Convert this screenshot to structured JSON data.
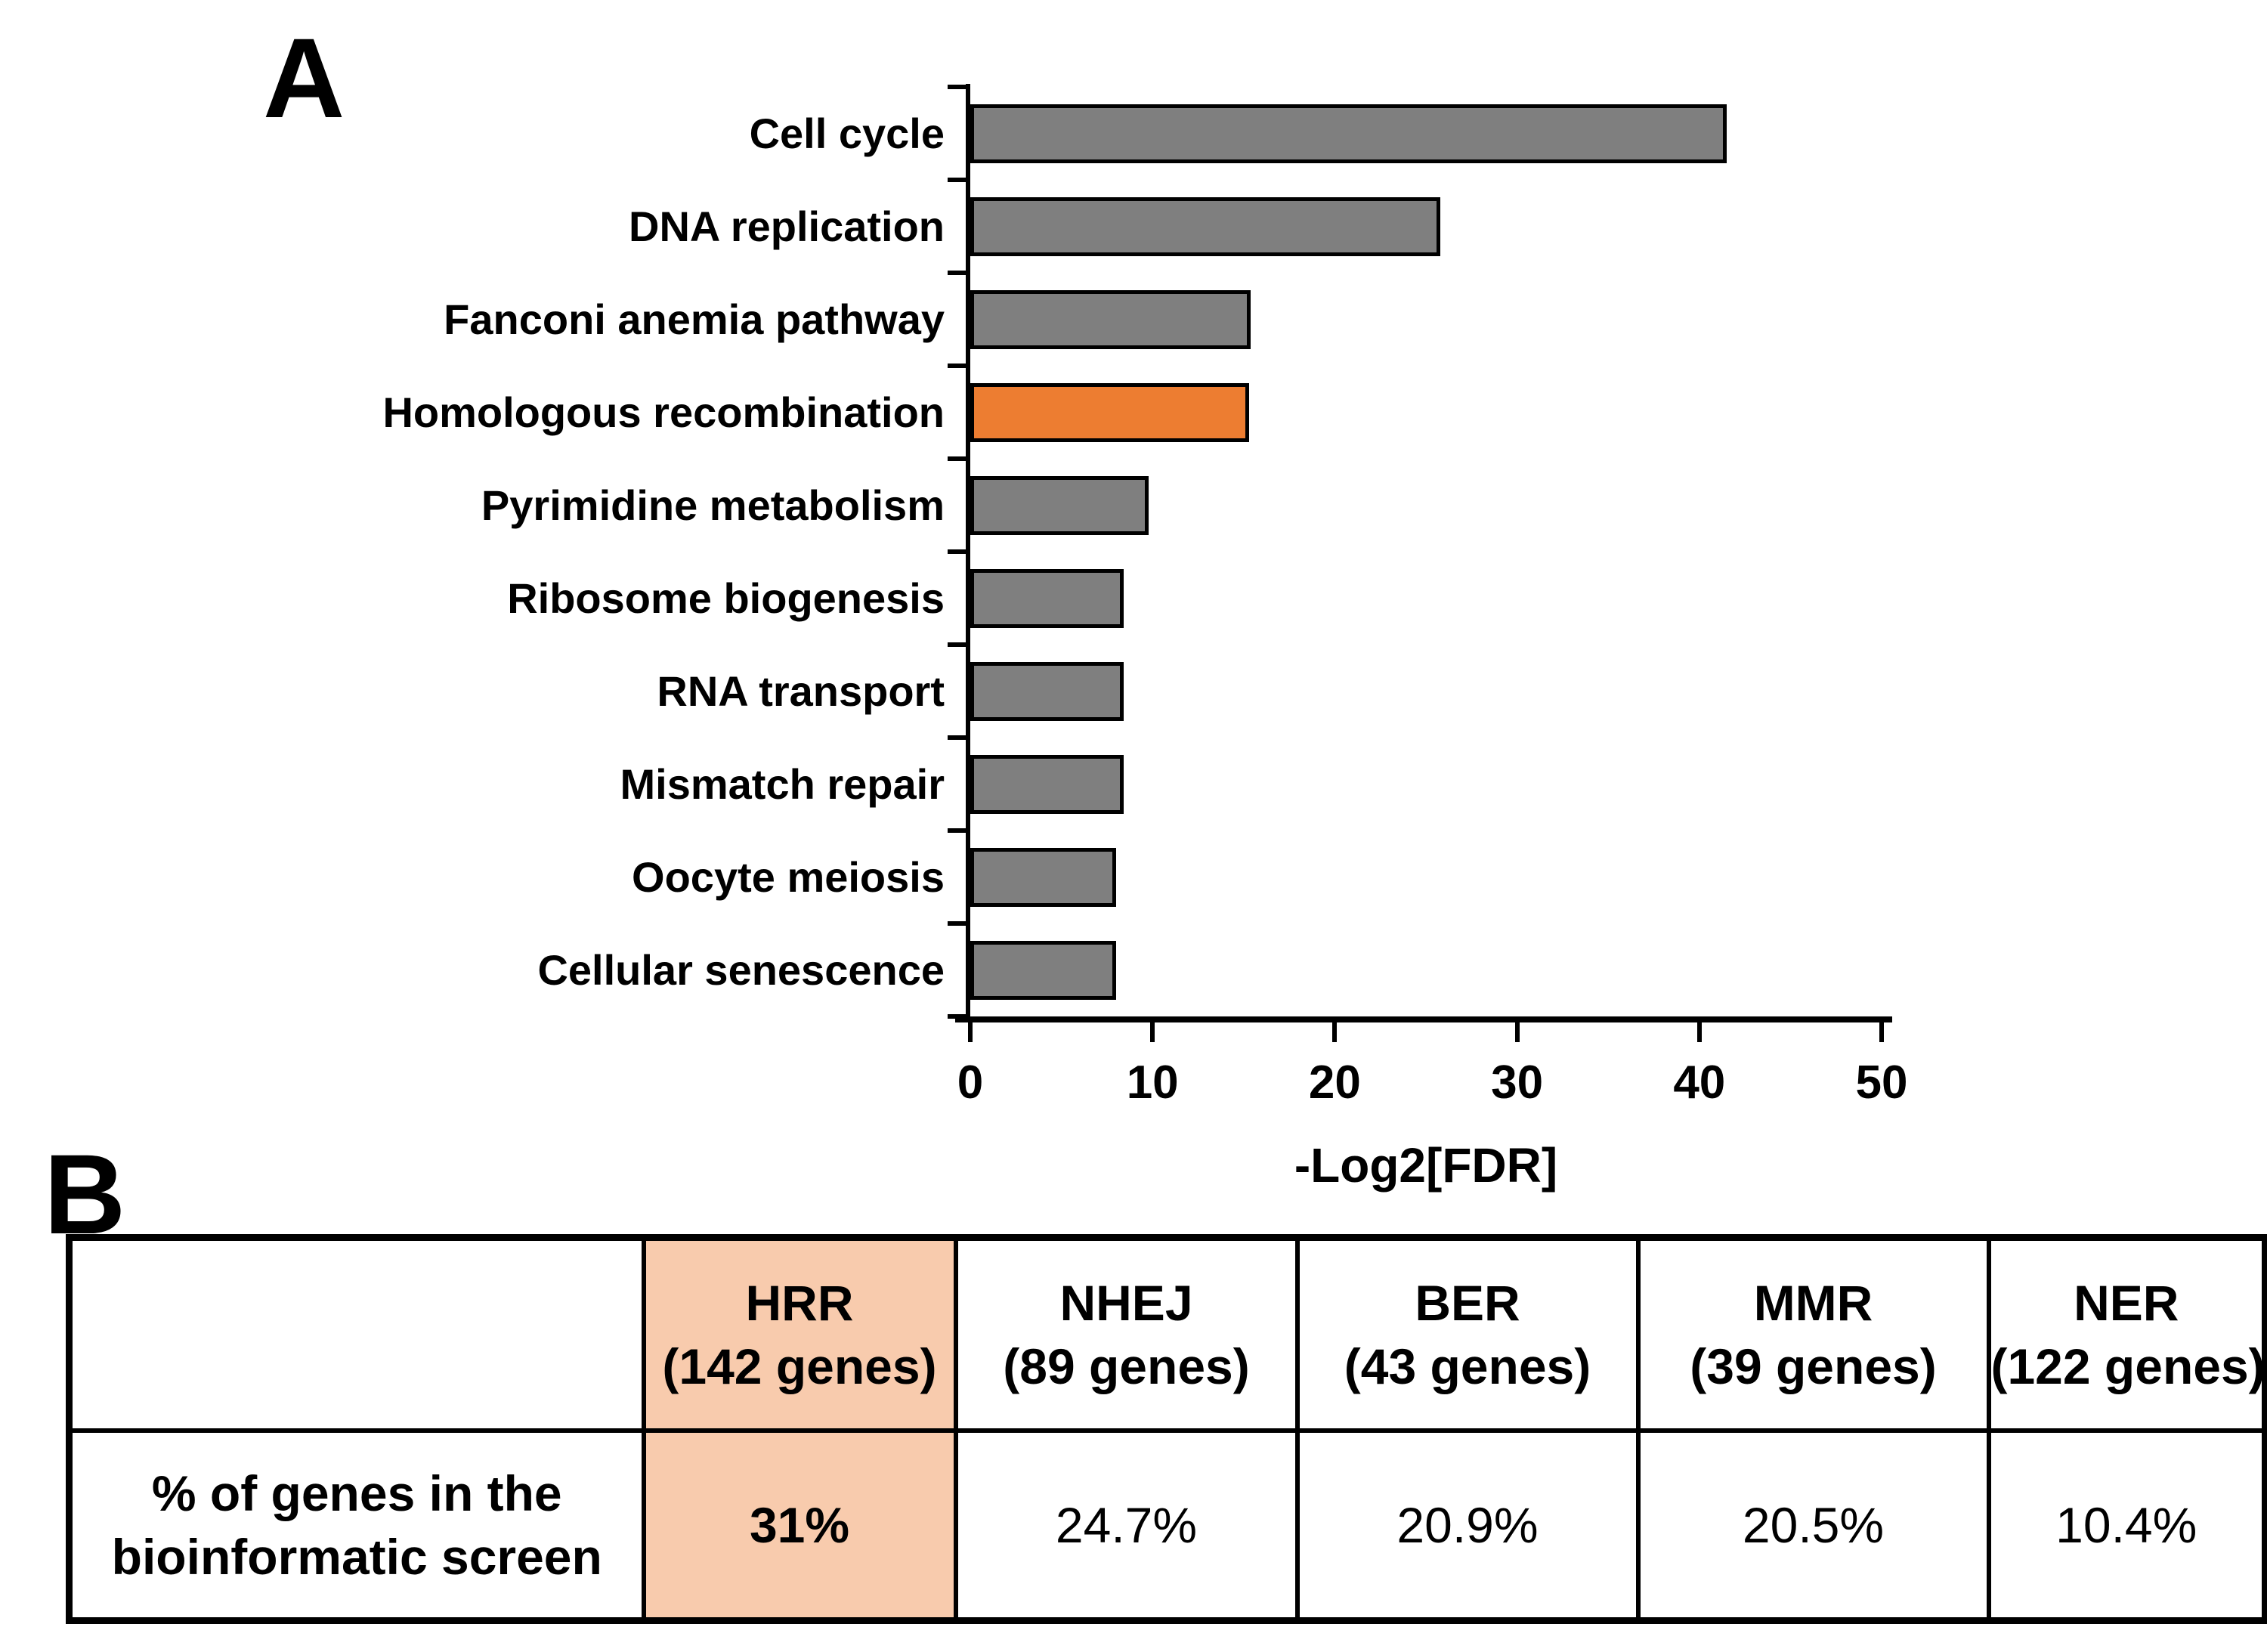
{
  "panels": {
    "a": "A",
    "b": "B"
  },
  "chart_data": {
    "type": "bar",
    "orientation": "horizontal",
    "categories": [
      "Cell cycle",
      "DNA replication",
      "Fanconi anemia pathway",
      "Homologous recombination",
      "Pyrimidine metabolism",
      "Ribosome biogenesis",
      "RNA transport",
      "Mismatch repair",
      "Oocyte meiosis",
      "Cellular senescence"
    ],
    "values": [
      41.5,
      25.8,
      15.4,
      15.3,
      9.8,
      8.4,
      8.4,
      8.4,
      8.0,
      8.0
    ],
    "highlight_index": 3,
    "xlabel": "-Log2[FDR]",
    "x_ticks": [
      0,
      10,
      20,
      30,
      40,
      50
    ],
    "xlim": [
      0,
      50
    ],
    "grid": false,
    "legend": null,
    "colors": {
      "bar": "#7F7F7F",
      "highlight": "#ED7D31",
      "border": "#000000"
    }
  },
  "table": {
    "row_header_lines": [
      "% of genes in the",
      "bioinformatic screen"
    ],
    "highlight_color": "#F8CBAD",
    "columns": [
      {
        "name": "HRR",
        "genes": "(142 genes)",
        "value": "31%",
        "highlight": true
      },
      {
        "name": "NHEJ",
        "genes": "(89 genes)",
        "value": "24.7%",
        "highlight": false
      },
      {
        "name": "BER",
        "genes": "(43 genes)",
        "value": "20.9%",
        "highlight": false
      },
      {
        "name": "MMR",
        "genes": "(39 genes)",
        "value": "20.5%",
        "highlight": false
      },
      {
        "name": "NER",
        "genes": "(122 genes)",
        "value": "10.4%",
        "highlight": false
      }
    ]
  }
}
